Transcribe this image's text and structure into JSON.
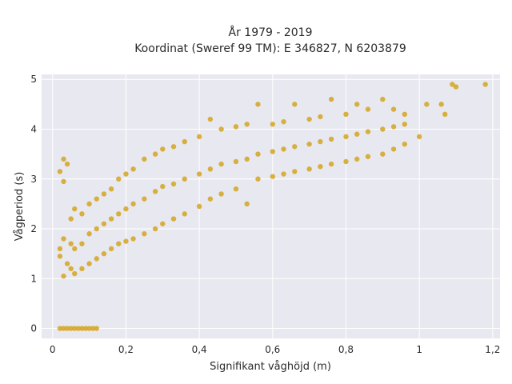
{
  "chart_data": {
    "type": "scatter",
    "title": "År 1979 - 2019",
    "subtitle": "Koordinat (Sweref 99 TM): E 346827, N 6203879",
    "xlabel": "Signifikant våghöjd (m)",
    "ylabel": "Vågperiod (s)",
    "xlim": [
      -0.03,
      1.22
    ],
    "ylim": [
      -0.2,
      5.1
    ],
    "xticks": [
      0,
      0.2,
      0.4,
      0.6,
      0.8,
      1,
      1.2
    ],
    "xtick_labels": [
      "0",
      "0,2",
      "0,4",
      "0,6",
      "0,8",
      "1",
      "1,2"
    ],
    "yticks": [
      0,
      1,
      2,
      3,
      4,
      5
    ],
    "ytick_labels": [
      "0",
      "1",
      "2",
      "3",
      "4",
      "5"
    ],
    "grid": true,
    "legend": "none",
    "colors": {
      "marker": "#d4a520",
      "plot_bg": "#e8e8f0",
      "grid": "#ffffff"
    },
    "series": [
      {
        "points": [
          [
            0.02,
            0
          ],
          [
            0.03,
            0
          ],
          [
            0.04,
            0
          ],
          [
            0.05,
            0
          ],
          [
            0.06,
            0
          ],
          [
            0.07,
            0
          ],
          [
            0.08,
            0
          ],
          [
            0.09,
            0
          ],
          [
            0.1,
            0
          ],
          [
            0.11,
            0
          ],
          [
            0.12,
            0
          ],
          [
            0.03,
            3.4
          ],
          [
            0.04,
            3.3
          ],
          [
            0.02,
            3.15
          ],
          [
            0.03,
            2.95
          ],
          [
            0.02,
            1.6
          ],
          [
            0.02,
            1.45
          ],
          [
            0.03,
            1.05
          ],
          [
            0.04,
            1.3
          ],
          [
            0.03,
            1.8
          ],
          [
            0.05,
            1.2
          ],
          [
            0.05,
            1.7
          ],
          [
            0.05,
            2.2
          ],
          [
            0.06,
            1.1
          ],
          [
            0.06,
            1.6
          ],
          [
            0.06,
            2.4
          ],
          [
            0.08,
            1.2
          ],
          [
            0.08,
            1.7
          ],
          [
            0.08,
            2.3
          ],
          [
            0.1,
            1.3
          ],
          [
            0.1,
            1.9
          ],
          [
            0.1,
            2.5
          ],
          [
            0.12,
            1.4
          ],
          [
            0.12,
            2.0
          ],
          [
            0.12,
            2.6
          ],
          [
            0.14,
            1.5
          ],
          [
            0.14,
            2.1
          ],
          [
            0.14,
            2.7
          ],
          [
            0.16,
            1.6
          ],
          [
            0.16,
            2.2
          ],
          [
            0.16,
            2.8
          ],
          [
            0.18,
            1.7
          ],
          [
            0.18,
            2.3
          ],
          [
            0.18,
            3.0
          ],
          [
            0.2,
            1.75
          ],
          [
            0.2,
            2.4
          ],
          [
            0.2,
            3.1
          ],
          [
            0.22,
            1.8
          ],
          [
            0.22,
            2.5
          ],
          [
            0.22,
            3.2
          ],
          [
            0.25,
            1.9
          ],
          [
            0.25,
            2.6
          ],
          [
            0.25,
            3.4
          ],
          [
            0.28,
            2.0
          ],
          [
            0.28,
            2.75
          ],
          [
            0.28,
            3.5
          ],
          [
            0.3,
            2.1
          ],
          [
            0.3,
            2.85
          ],
          [
            0.3,
            3.6
          ],
          [
            0.33,
            2.2
          ],
          [
            0.33,
            2.9
          ],
          [
            0.33,
            3.65
          ],
          [
            0.36,
            2.3
          ],
          [
            0.36,
            3.0
          ],
          [
            0.36,
            3.75
          ],
          [
            0.4,
            2.45
          ],
          [
            0.4,
            3.1
          ],
          [
            0.4,
            3.85
          ],
          [
            0.43,
            2.6
          ],
          [
            0.43,
            3.2
          ],
          [
            0.43,
            4.2
          ],
          [
            0.46,
            2.7
          ],
          [
            0.46,
            3.3
          ],
          [
            0.46,
            4.0
          ],
          [
            0.5,
            2.8
          ],
          [
            0.5,
            3.35
          ],
          [
            0.5,
            4.05
          ],
          [
            0.53,
            2.5
          ],
          [
            0.53,
            3.4
          ],
          [
            0.53,
            4.1
          ],
          [
            0.56,
            3.0
          ],
          [
            0.56,
            3.5
          ],
          [
            0.56,
            4.5
          ],
          [
            0.6,
            3.05
          ],
          [
            0.6,
            3.55
          ],
          [
            0.6,
            4.1
          ],
          [
            0.63,
            3.1
          ],
          [
            0.63,
            3.6
          ],
          [
            0.63,
            4.15
          ],
          [
            0.66,
            3.15
          ],
          [
            0.66,
            3.65
          ],
          [
            0.66,
            4.5
          ],
          [
            0.7,
            3.2
          ],
          [
            0.7,
            3.7
          ],
          [
            0.7,
            4.2
          ],
          [
            0.73,
            3.25
          ],
          [
            0.73,
            3.75
          ],
          [
            0.73,
            4.25
          ],
          [
            0.76,
            3.3
          ],
          [
            0.76,
            3.8
          ],
          [
            0.76,
            4.6
          ],
          [
            0.8,
            3.35
          ],
          [
            0.8,
            3.85
          ],
          [
            0.8,
            4.3
          ],
          [
            0.83,
            3.4
          ],
          [
            0.83,
            3.9
          ],
          [
            0.83,
            4.5
          ],
          [
            0.86,
            3.45
          ],
          [
            0.86,
            3.95
          ],
          [
            0.86,
            4.4
          ],
          [
            0.9,
            3.5
          ],
          [
            0.9,
            4.0
          ],
          [
            0.9,
            4.6
          ],
          [
            0.93,
            3.6
          ],
          [
            0.93,
            4.05
          ],
          [
            0.93,
            4.4
          ],
          [
            0.96,
            3.7
          ],
          [
            0.96,
            4.1
          ],
          [
            0.96,
            4.3
          ],
          [
            1.0,
            3.85
          ],
          [
            1.02,
            4.5
          ],
          [
            1.06,
            4.5
          ],
          [
            1.07,
            4.3
          ],
          [
            1.09,
            4.9
          ],
          [
            1.1,
            4.85
          ],
          [
            1.18,
            4.9
          ]
        ]
      }
    ]
  }
}
